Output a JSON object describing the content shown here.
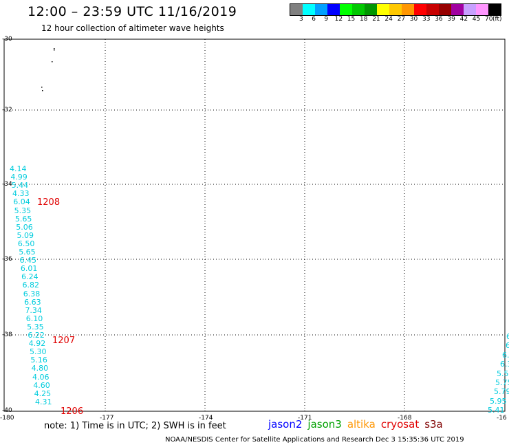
{
  "header": {
    "title": "12:00 – 23:59 UTC 11/16/2019",
    "subtitle": "12 hour collection of altimeter wave heights"
  },
  "scale": {
    "colors": [
      "#808080",
      "#00ffff",
      "#00a0ff",
      "#0000ff",
      "#00ff00",
      "#00c800",
      "#009600",
      "#ffff00",
      "#ffc800",
      "#ff9600",
      "#ff0000",
      "#c80000",
      "#960000",
      "#a000a0",
      "#c8a0ff",
      "#ff96ff",
      "#000000"
    ],
    "labels": [
      "3",
      "6",
      "9",
      "12",
      "15",
      "18",
      "21",
      "24",
      "27",
      "30",
      "33",
      "36",
      "39",
      "42",
      "45",
      "70"
    ],
    "unit": "(ft)"
  },
  "axes": {
    "lat_labels": [
      "-30",
      "-32",
      "-34",
      "-36",
      "-38",
      "-40"
    ],
    "lon_labels": [
      "-180",
      "-177",
      "-174",
      "-171",
      "-168",
      "-16"
    ]
  },
  "track_left": [
    "4.14",
    "4.99",
    "5.44",
    "4.33",
    "6.04",
    "5.35",
    "5.65",
    "5.06",
    "5.09",
    "6.50",
    "5.65",
    "6.45",
    "6.01",
    "6.24",
    "6.82",
    "6.38",
    "6.63",
    "7.34",
    "6.10",
    "5.35",
    "6.22",
    "4.92",
    "5.30",
    "5.16",
    "4.80",
    "4.06",
    "4.60",
    "4.25",
    "4.31"
  ],
  "track_right": [
    "6",
    "6",
    "6.",
    "6.3",
    "5.5",
    "5.75",
    "5.79",
    "5.95",
    "5.41"
  ],
  "markers": [
    "1208",
    "1207",
    "1206"
  ],
  "footer": {
    "note": "note: 1) Time is in UTC; 2) SWH is in feet",
    "credit": "NOAA/NESDIS Center for Satellite Applications and Research    Dec  3 15:35:36 UTC 2019"
  },
  "legend": [
    {
      "name": "jason2",
      "color": "#0000ff"
    },
    {
      "name": "jason3",
      "color": "#00a000"
    },
    {
      "name": "altika",
      "color": "#ff9600"
    },
    {
      "name": "cryosat",
      "color": "#e00000"
    },
    {
      "name": "s3a",
      "color": "#800000"
    }
  ]
}
